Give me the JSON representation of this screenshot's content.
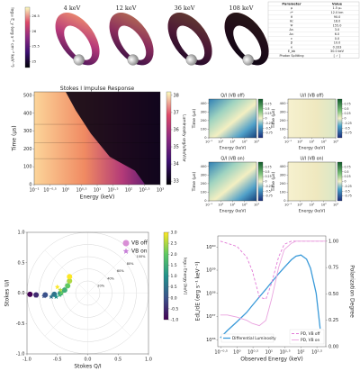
{
  "table": {
    "header": [
      "Parameter",
      "Value"
    ],
    "rows": [
      [
        "μ",
        "1.5 μ₀"
      ],
      [
        "r*",
        "12.0 km"
      ],
      [
        "θ",
        "90.0"
      ],
      [
        "θc",
        "18.0"
      ],
      [
        "Ψ",
        "155.0"
      ],
      [
        "Δr₁",
        "3.0"
      ],
      [
        "Δr₂",
        "6.0"
      ],
      [
        "ε",
        "0.0"
      ],
      [
        "β",
        "10.0"
      ],
      [
        "κ",
        "0.333"
      ],
      [
        "E_bb",
        "30.0 keV"
      ],
      [
        "Photon Splitting",
        "[ ✓ ]"
      ]
    ]
  },
  "chart_data": [
    {
      "type": "disk-map",
      "panel_titles": [
        "4 keV",
        "12 keV",
        "36 keV",
        "108 keV"
      ],
      "colorbar_label": "log₁₀ E_γ (erg s⁻¹ cm⁻² keV⁻¹)",
      "clim": [
        24.8,
        26.8
      ],
      "cticks": [
        25.0,
        25.5,
        26.0,
        26.5
      ]
    },
    {
      "type": "heatmap",
      "title": "Stokes I Impulse Response",
      "xlabel": "Energy (keV)",
      "ylabel": "Time (µs)",
      "xlog": true,
      "xlim": [
        0.1,
        1000
      ],
      "ylim": [
        0,
        520
      ],
      "xticks": [
        {
          "value": 0.1,
          "label": "10⁻¹"
        },
        {
          "value": 0.3162,
          "label": "10⁻⁰·⁵"
        },
        {
          "value": 1,
          "label": "10⁰"
        },
        {
          "value": 3.162,
          "label": "10⁰·⁵"
        },
        {
          "value": 10,
          "label": "10¹"
        },
        {
          "value": 31.62,
          "label": "10¹·⁵"
        },
        {
          "value": 100,
          "label": "10²"
        },
        {
          "value": 316.2,
          "label": "10²·⁵"
        },
        {
          "value": 1000,
          "label": "10³"
        }
      ],
      "yticks": [
        0,
        100,
        200,
        300,
        400,
        500
      ],
      "colorbar_label": "Luminosity erg/s/keV/sr",
      "colormap": "magma",
      "clim": [
        32.8,
        38.2
      ],
      "cticks": [
        33,
        34,
        35,
        36,
        37,
        38
      ]
    },
    {
      "type": "heatmap",
      "title": "Q/I (VB off)",
      "xlabel": "Energy (keV)",
      "ylabel": "Time (µs)",
      "xlog": true,
      "xlim": [
        0.1,
        1000
      ],
      "ylim": [
        0,
        450
      ],
      "xticks": [
        {
          "value": 0.1,
          "label": "10⁻¹"
        },
        {
          "value": 1,
          "label": "10⁰"
        },
        {
          "value": 10,
          "label": "10¹"
        },
        {
          "value": 100,
          "label": "10²"
        },
        {
          "value": 1000,
          "label": "10³"
        }
      ],
      "yticks": [
        0,
        100,
        200,
        300,
        400
      ],
      "colormap": "diverging",
      "clim": [
        -1,
        1
      ],
      "cticks": [
        -0.75,
        -0.5,
        -0.25,
        0,
        0.25,
        0.5,
        0.75
      ]
    },
    {
      "type": "heatmap",
      "title": "U/I (VB off)",
      "xlabel": "Energy (keV)",
      "ylabel": "Time (µs)",
      "xlog": true,
      "xlim": [
        0.1,
        1000
      ],
      "ylim": [
        0,
        450
      ],
      "xticks": [
        {
          "value": 0.1,
          "label": "10⁻¹"
        },
        {
          "value": 1,
          "label": "10⁰"
        },
        {
          "value": 10,
          "label": "10¹"
        },
        {
          "value": 100,
          "label": "10²"
        },
        {
          "value": 1000,
          "label": "10³"
        }
      ],
      "yticks": [
        0,
        100,
        200,
        300,
        400
      ],
      "colormap": "diverging-light",
      "clim": [
        -1,
        1
      ],
      "cticks": [
        -0.75,
        -0.5,
        -0.25,
        0,
        0.25,
        0.5,
        0.75
      ]
    },
    {
      "type": "heatmap",
      "title": "Q/I (VB on)",
      "xlabel": "Energy (keV)",
      "ylabel": "Time (µs)",
      "xlog": true,
      "xlim": [
        0.1,
        1000
      ],
      "ylim": [
        0,
        450
      ],
      "xticks": [
        {
          "value": 0.1,
          "label": "10⁻¹"
        },
        {
          "value": 1,
          "label": "10⁰"
        },
        {
          "value": 10,
          "label": "10¹"
        },
        {
          "value": 100,
          "label": "10²"
        },
        {
          "value": 1000,
          "label": "10³"
        }
      ],
      "yticks": [
        0,
        100,
        200,
        300,
        400
      ],
      "colormap": "diverging",
      "clim": [
        -1,
        1
      ],
      "cticks": [
        -0.75,
        -0.5,
        -0.25,
        0,
        0.25,
        0.5,
        0.75
      ]
    },
    {
      "type": "heatmap",
      "title": "U/I (VB on)",
      "xlabel": "Energy (keV)",
      "ylabel": "Time (µs)",
      "xlog": true,
      "xlim": [
        0.1,
        1000
      ],
      "ylim": [
        0,
        450
      ],
      "xticks": [
        {
          "value": 0.1,
          "label": "10⁻¹"
        },
        {
          "value": 1,
          "label": "10⁰"
        },
        {
          "value": 10,
          "label": "10¹"
        },
        {
          "value": 100,
          "label": "10²"
        },
        {
          "value": 1000,
          "label": "10³"
        }
      ],
      "yticks": [
        0,
        100,
        200,
        300,
        400
      ],
      "colormap": "diverging-light",
      "clim": [
        -1,
        1
      ],
      "cticks": [
        -0.75,
        -0.5,
        -0.25,
        0,
        0.25,
        0.5,
        0.75
      ]
    },
    {
      "type": "polarization",
      "xlabel": "Stokes Q/I",
      "ylabel": "Stokes U/I",
      "xlim": [
        -1,
        1
      ],
      "ylim": [
        -1,
        1
      ],
      "xticks": [
        {
          "value": -1,
          "label": "-1.0"
        },
        -0.5,
        {
          "value": 0,
          "label": "0.0"
        },
        0.5,
        {
          "value": 1,
          "label": "1.0"
        }
      ],
      "yticks": [
        {
          "value": -1,
          "label": "-1.0"
        },
        -0.5,
        {
          "value": 0,
          "label": "0.0"
        },
        0.5,
        {
          "value": 1,
          "label": "1.0"
        }
      ],
      "rings": [
        {
          "value": 0.2,
          "label": "20%"
        },
        {
          "value": 0.4,
          "label": "40%"
        },
        {
          "value": 0.6,
          "label": "60%"
        },
        {
          "value": 0.8,
          "label": "80%"
        },
        {
          "value": 1.0,
          "label": "100%"
        }
      ],
      "colorbar_label": "log₁₀ Energy [keV]",
      "colormap": "viridis",
      "clim": [
        -1,
        3
      ],
      "cticks": [
        {
          "value": -1,
          "label": "-1.0"
        },
        -0.5,
        {
          "value": 0,
          "label": "0.0"
        },
        0.5,
        {
          "value": 1,
          "label": "1.0"
        },
        1.5,
        {
          "value": 2,
          "label": "2.0"
        },
        2.5,
        {
          "value": 3,
          "label": "3.0"
        }
      ],
      "series": [
        {
          "name": "VB off",
          "color": "#d98fd6",
          "marker": "circle",
          "x": [
            -0.95,
            -0.85,
            -0.7,
            -0.55,
            -0.45,
            -0.38,
            -0.33,
            -0.3,
            -0.3
          ],
          "y": [
            -0.02,
            -0.03,
            -0.03,
            -0.02,
            0.0,
            0.05,
            0.12,
            0.2,
            0.27
          ],
          "energy": [
            -1,
            -0.5,
            0,
            0.5,
            1,
            1.5,
            2,
            2.5,
            3
          ]
        },
        {
          "name": "VB on",
          "color": "#c77fd8",
          "marker": "star",
          "x": [
            -0.95,
            -0.85,
            -0.72,
            -0.6,
            -0.52,
            -0.46,
            -0.43,
            -0.45,
            -0.5
          ],
          "y": [
            -0.02,
            -0.04,
            -0.05,
            -0.06,
            -0.06,
            -0.03,
            0.0,
            0.05,
            0.1
          ],
          "energy": [
            -1,
            -0.5,
            0,
            0.5,
            1,
            1.5,
            2,
            2.5,
            3
          ]
        }
      ]
    },
    {
      "type": "line",
      "xlabel": "Observed Energy (keV)",
      "ylabel": "EdL/dE (erg s⁻¹ keV⁻¹)",
      "y2label": "Polarization Degree",
      "xlog": true,
      "ylog": true,
      "xlim": [
        0.25,
        600
      ],
      "ylim": [
        5e+35,
        3e+40
      ],
      "y2lim": [
        0,
        1.05
      ],
      "xticks": [
        {
          "value": 0.3162,
          "label": "10⁻⁰·⁵"
        },
        {
          "value": 1,
          "label": "10⁰"
        },
        {
          "value": 3.162,
          "label": "10⁰·⁵"
        },
        {
          "value": 10,
          "label": "10¹"
        },
        {
          "value": 31.62,
          "label": "10¹·⁵"
        },
        {
          "value": 100,
          "label": "10²"
        },
        {
          "value": 316.2,
          "label": "10²·⁵"
        }
      ],
      "yticks": [
        {
          "value": 1e+36,
          "label": "10³⁶"
        },
        {
          "value": 1e+37,
          "label": "10³⁷"
        },
        {
          "value": 1e+38,
          "label": "10³⁸"
        },
        {
          "value": 1e+39,
          "label": "10³⁹"
        },
        {
          "value": 1e+40,
          "label": "10⁴⁰"
        }
      ],
      "y2ticks": [
        {
          "value": 0,
          "label": "0.00"
        },
        0.25,
        {
          "value": 0.5,
          "label": "0.50"
        },
        0.75,
        {
          "value": 1,
          "label": "1.00"
        }
      ],
      "x": [
        0.3,
        0.5,
        1,
        2,
        3,
        5,
        8,
        12,
        20,
        30,
        50,
        70,
        100,
        150,
        200,
        300,
        400,
        600
      ],
      "series": [
        {
          "name": "Differential Luminosity",
          "color": "#3a9ad9",
          "dash": false,
          "values": [
            1.2e+36,
            2.5e+36,
            6e+36,
            1.5e+37,
            3e+37,
            7e+37,
            1.5e+38,
            3e+38,
            7e+38,
            1.3e+39,
            2.8e+39,
            4e+39,
            4.5e+39,
            3e+39,
            1.2e+39,
            1e+38,
            3e+36,
            null
          ]
        },
        {
          "name": "PD, VB off",
          "color": "#e27ad6",
          "dash": true,
          "axis": "y2",
          "values": [
            1.0,
            0.98,
            0.95,
            0.85,
            0.72,
            0.47,
            0.45,
            0.6,
            0.85,
            0.97,
            1.0,
            1.0,
            1.0,
            1.0,
            1.0,
            1.0,
            1.0,
            1.0
          ]
        },
        {
          "name": "PD, VB on",
          "color": "#e9a3df",
          "dash": false,
          "axis": "y2",
          "values": [
            0.3,
            0.3,
            0.28,
            0.25,
            0.22,
            0.2,
            0.25,
            0.45,
            0.75,
            0.92,
            0.98,
            1.0,
            1.0,
            1.0,
            1.0,
            1.0,
            1.0,
            1.0
          ]
        }
      ]
    }
  ]
}
